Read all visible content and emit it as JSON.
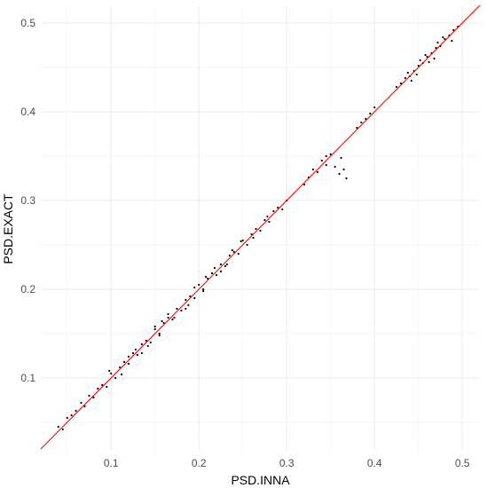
{
  "chart_data": {
    "type": "scatter",
    "title": "",
    "xlabel": "PSD.INNA",
    "ylabel": "PSD.EXACT",
    "xlim": [
      0.02,
      0.52
    ],
    "ylim": [
      0.018,
      0.518
    ],
    "x_ticks": [
      0.1,
      0.2,
      0.3,
      0.4,
      0.5
    ],
    "x_tick_labels": [
      "0.1",
      "0.2",
      "0.3",
      "0.4",
      "0.5"
    ],
    "y_ticks": [
      0.1,
      0.2,
      0.3,
      0.4,
      0.5
    ],
    "y_tick_labels": [
      "0.1",
      "0.2",
      "0.3",
      "0.4",
      "0.5"
    ],
    "grid": true,
    "legend": "none",
    "colors": {
      "points": "#000000",
      "reference_line": "#ff0000",
      "grid": "#ebebeb",
      "background": "#ffffff"
    },
    "reference_line": {
      "name": "",
      "intercept": 0,
      "slope": 1
    },
    "series": [
      {
        "name": "",
        "x": [
          0.04,
          0.045,
          0.05,
          0.055,
          0.06,
          0.066,
          0.07,
          0.075,
          0.08,
          0.085,
          0.09,
          0.095,
          0.1,
          0.105,
          0.11,
          0.115,
          0.12,
          0.125,
          0.13,
          0.135,
          0.14,
          0.145,
          0.15,
          0.155,
          0.16,
          0.165,
          0.17,
          0.175,
          0.18,
          0.185,
          0.19,
          0.195,
          0.2,
          0.205,
          0.21,
          0.215,
          0.22,
          0.225,
          0.23,
          0.235,
          0.24,
          0.245,
          0.25,
          0.255,
          0.26,
          0.265,
          0.27,
          0.275,
          0.28,
          0.285,
          0.29,
          0.295,
          0.3,
          0.32,
          0.325,
          0.33,
          0.335,
          0.34,
          0.345,
          0.35,
          0.355,
          0.36,
          0.365,
          0.38,
          0.385,
          0.39,
          0.395,
          0.4,
          0.425,
          0.43,
          0.435,
          0.44,
          0.445,
          0.45,
          0.455,
          0.46,
          0.465,
          0.47,
          0.475,
          0.48,
          0.485,
          0.49,
          0.495,
          0.098,
          0.112,
          0.128,
          0.142,
          0.158,
          0.172,
          0.188,
          0.205,
          0.218,
          0.232,
          0.248,
          0.262,
          0.278,
          0.155,
          0.165,
          0.185,
          0.195,
          0.208,
          0.225,
          0.238,
          0.12,
          0.135,
          0.15,
          0.345,
          0.362,
          0.368,
          0.442,
          0.452,
          0.462,
          0.472,
          0.448,
          0.458,
          0.468,
          0.478,
          0.438,
          0.488
        ],
        "y": [
          0.045,
          0.042,
          0.055,
          0.058,
          0.063,
          0.072,
          0.068,
          0.08,
          0.078,
          0.088,
          0.092,
          0.09,
          0.105,
          0.1,
          0.112,
          0.118,
          0.116,
          0.128,
          0.126,
          0.138,
          0.142,
          0.14,
          0.155,
          0.15,
          0.162,
          0.168,
          0.166,
          0.178,
          0.176,
          0.188,
          0.192,
          0.19,
          0.205,
          0.2,
          0.212,
          0.218,
          0.216,
          0.228,
          0.226,
          0.238,
          0.242,
          0.24,
          0.255,
          0.25,
          0.262,
          0.268,
          0.266,
          0.278,
          0.276,
          0.288,
          0.292,
          0.29,
          0.3,
          0.318,
          0.326,
          0.335,
          0.332,
          0.345,
          0.34,
          0.352,
          0.338,
          0.33,
          0.335,
          0.382,
          0.388,
          0.392,
          0.398,
          0.405,
          0.428,
          0.432,
          0.438,
          0.44,
          0.446,
          0.452,
          0.455,
          0.462,
          0.466,
          0.472,
          0.474,
          0.482,
          0.486,
          0.492,
          0.496,
          0.108,
          0.104,
          0.132,
          0.136,
          0.164,
          0.168,
          0.182,
          0.198,
          0.224,
          0.228,
          0.254,
          0.258,
          0.282,
          0.148,
          0.172,
          0.178,
          0.202,
          0.214,
          0.22,
          0.244,
          0.124,
          0.128,
          0.158,
          0.35,
          0.348,
          0.325,
          0.435,
          0.458,
          0.456,
          0.478,
          0.442,
          0.464,
          0.46,
          0.484,
          0.444,
          0.48
        ]
      }
    ]
  }
}
